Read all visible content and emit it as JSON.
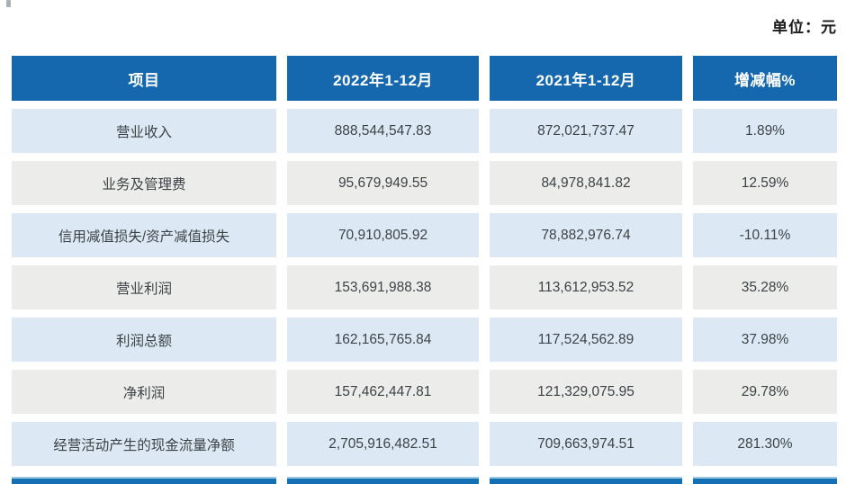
{
  "unit_label": "单位：元",
  "table": {
    "headers": [
      "项目",
      "2022年1-12月",
      "2021年1-12月",
      "增减幅%"
    ],
    "rows": [
      {
        "item": "营业收入",
        "y2022": "888,544,547.83",
        "y2021": "872,021,737.47",
        "change": "1.89%"
      },
      {
        "item": "业务及管理费",
        "y2022": "95,679,949.55",
        "y2021": "84,978,841.82",
        "change": "12.59%"
      },
      {
        "item": "信用减值损失/资产减值损失",
        "y2022": "70,910,805.92",
        "y2021": "78,882,976.74",
        "change": "-10.11%"
      },
      {
        "item": "营业利润",
        "y2022": "153,691,988.38",
        "y2021": "113,612,953.52",
        "change": "35.28%"
      },
      {
        "item": "利润总额",
        "y2022": "162,165,765.84",
        "y2021": "117,524,562.89",
        "change": "37.98%"
      },
      {
        "item": "净利润",
        "y2022": "157,462,447.81",
        "y2021": "121,329,075.95",
        "change": "29.78%"
      },
      {
        "item": "经营活动产生的现金流量净额",
        "y2022": "2,705,916,482.51",
        "y2021": "709,663,974.51",
        "change": "281.30%"
      }
    ]
  },
  "colors": {
    "header_blue": "#1568ae",
    "row_blue": "#dce9f4",
    "row_gray": "#ecedea",
    "strip_blue": "#1470b4",
    "body_text": "#3d4247",
    "unit_text": "#1a1a1a"
  }
}
